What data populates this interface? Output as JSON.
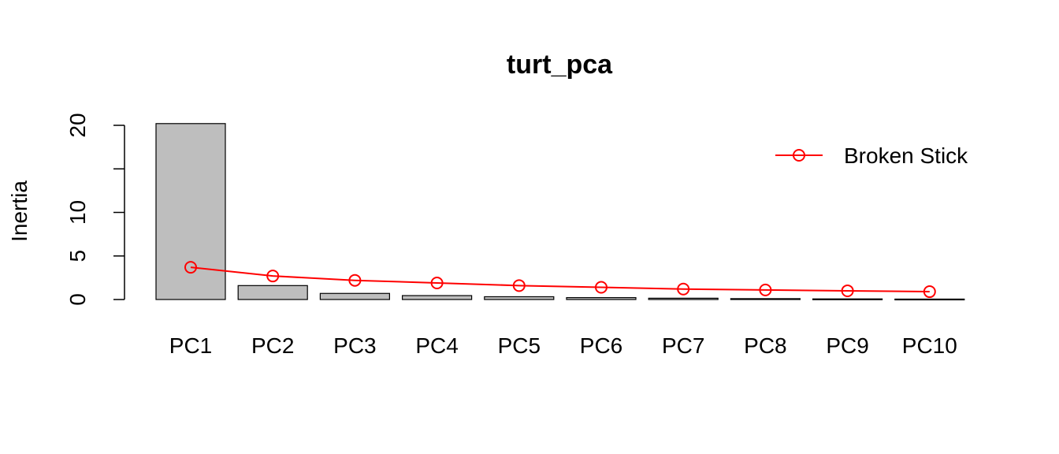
{
  "chart_data": {
    "type": "bar",
    "title": "turt_pca",
    "xlabel": "",
    "ylabel": "Inertia",
    "ylim": [
      0,
      20
    ],
    "yticks": [
      0,
      5,
      10,
      20
    ],
    "grid": false,
    "categories": [
      "PC1",
      "PC2",
      "PC3",
      "PC4",
      "PC5",
      "PC6",
      "PC7",
      "PC8",
      "PC9",
      "PC10"
    ],
    "values": [
      20.2,
      1.6,
      0.7,
      0.45,
      0.32,
      0.22,
      0.15,
      0.1,
      0.07,
      0.05
    ],
    "bar_color": "#bebebe",
    "overlay": {
      "type": "line",
      "name": "Broken Stick",
      "color": "#ff0000",
      "marker": "open-circle",
      "values": [
        3.7,
        2.7,
        2.2,
        1.9,
        1.6,
        1.4,
        1.2,
        1.1,
        1.0,
        0.9
      ]
    },
    "legend": {
      "position": "top-right",
      "entries": [
        "Broken Stick"
      ]
    }
  }
}
